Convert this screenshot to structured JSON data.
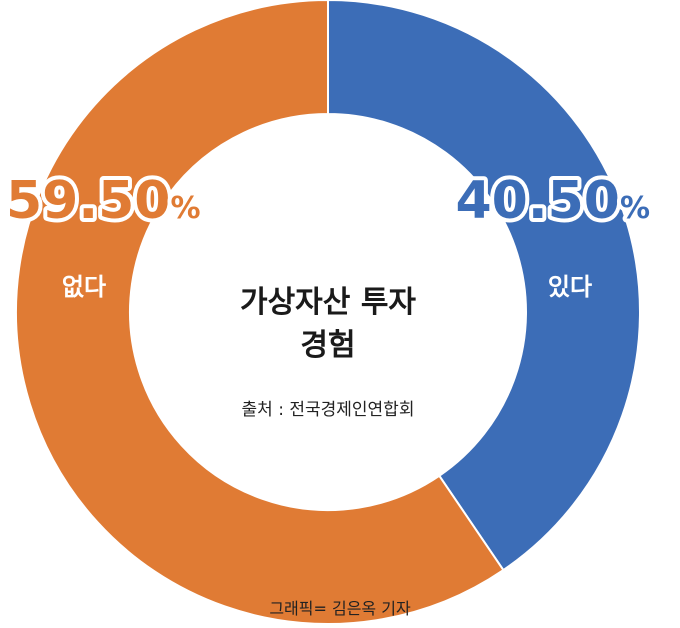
{
  "chart_data": {
    "type": "pie",
    "donut": true,
    "title_lines": [
      "가상자산 투자",
      "경험"
    ],
    "source": "출처 : 전국경제인연합회",
    "credit": "그래픽= 김은옥 기자",
    "slices": [
      {
        "label": "있다",
        "value": 40.5,
        "value_text": "40.50",
        "unit": "%",
        "color": "#3c6db7"
      },
      {
        "label": "없다",
        "value": 59.5,
        "value_text": "59.50",
        "unit": "%",
        "color": "#e07b34"
      }
    ]
  }
}
